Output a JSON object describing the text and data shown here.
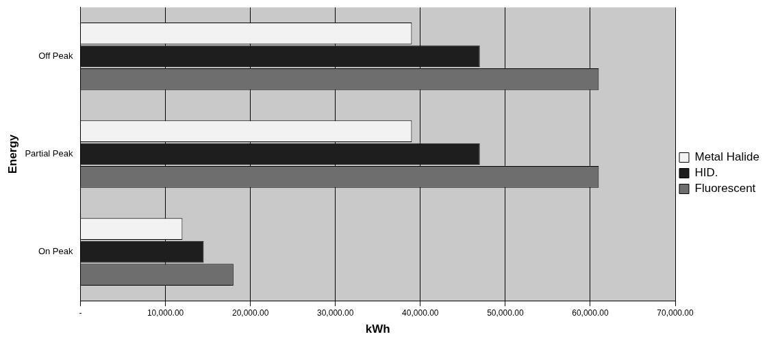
{
  "chart_data": {
    "type": "bar",
    "orientation": "horizontal",
    "xlabel": "kWh",
    "ylabel": "Energy",
    "categories": [
      "Off Peak",
      "Partial Peak",
      "On Peak"
    ],
    "series": [
      {
        "name": "Metal Halide",
        "color": "#f2f2f2",
        "values": [
          39000,
          39000,
          12000
        ]
      },
      {
        "name": "HID.",
        "color": "#1e1e1e",
        "values": [
          47000,
          47000,
          14500
        ]
      },
      {
        "name": "Fluorescent",
        "color": "#6e6e6e",
        "values": [
          61000,
          61000,
          18000
        ]
      }
    ],
    "xlim": [
      0,
      70000
    ],
    "xticks": [
      {
        "value": 0,
        "label": "-"
      },
      {
        "value": 10000,
        "label": "10,000.00"
      },
      {
        "value": 20000,
        "label": "20,000.00"
      },
      {
        "value": 30000,
        "label": "30,000.00"
      },
      {
        "value": 40000,
        "label": "40,000.00"
      },
      {
        "value": 50000,
        "label": "50,000.00"
      },
      {
        "value": 60000,
        "label": "60,000.00"
      },
      {
        "value": 70000,
        "label": "70,000.00"
      }
    ],
    "grid": "x",
    "legend": "right"
  }
}
